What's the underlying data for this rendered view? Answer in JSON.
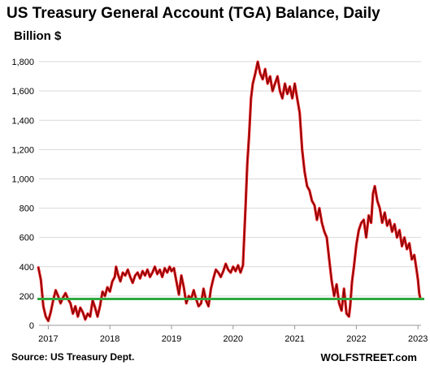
{
  "chart_data": {
    "type": "line",
    "title": "US Treasury General Account (TGA) Balance, Daily",
    "subtitle": "Billion $",
    "xlabel": "",
    "ylabel": "",
    "x_ticks": [
      "2017",
      "2018",
      "2019",
      "2020",
      "2021",
      "2022",
      "2023"
    ],
    "y_ticks": [
      "0",
      "200",
      "400",
      "600",
      "800",
      "1,000",
      "1,200",
      "1,400",
      "1,600",
      "1,800"
    ],
    "xlim": [
      2016.85,
      2023.05
    ],
    "ylim": [
      0,
      1900
    ],
    "grid": "horizontal",
    "legend": "none",
    "series": [
      {
        "color": "#e41a1c",
        "points": [
          [
            2016.84,
            395
          ],
          [
            2016.88,
            310
          ],
          [
            2016.92,
            130
          ],
          [
            2016.96,
            60
          ],
          [
            2017.0,
            30
          ],
          [
            2017.04,
            90
          ],
          [
            2017.08,
            170
          ],
          [
            2017.12,
            240
          ],
          [
            2017.16,
            200
          ],
          [
            2017.2,
            150
          ],
          [
            2017.24,
            190
          ],
          [
            2017.28,
            220
          ],
          [
            2017.32,
            180
          ],
          [
            2017.36,
            150
          ],
          [
            2017.4,
            80
          ],
          [
            2017.44,
            130
          ],
          [
            2017.48,
            60
          ],
          [
            2017.52,
            120
          ],
          [
            2017.56,
            90
          ],
          [
            2017.6,
            40
          ],
          [
            2017.64,
            80
          ],
          [
            2017.68,
            60
          ],
          [
            2017.72,
            170
          ],
          [
            2017.76,
            120
          ],
          [
            2017.8,
            60
          ],
          [
            2017.84,
            130
          ],
          [
            2017.88,
            230
          ],
          [
            2017.92,
            200
          ],
          [
            2017.96,
            260
          ],
          [
            2018.0,
            230
          ],
          [
            2018.04,
            300
          ],
          [
            2018.08,
            330
          ],
          [
            2018.1,
            400
          ],
          [
            2018.13,
            350
          ],
          [
            2018.17,
            300
          ],
          [
            2018.21,
            360
          ],
          [
            2018.25,
            340
          ],
          [
            2018.29,
            380
          ],
          [
            2018.33,
            330
          ],
          [
            2018.37,
            290
          ],
          [
            2018.41,
            340
          ],
          [
            2018.45,
            360
          ],
          [
            2018.49,
            320
          ],
          [
            2018.53,
            370
          ],
          [
            2018.57,
            340
          ],
          [
            2018.61,
            380
          ],
          [
            2018.65,
            330
          ],
          [
            2018.69,
            360
          ],
          [
            2018.73,
            400
          ],
          [
            2018.77,
            350
          ],
          [
            2018.81,
            380
          ],
          [
            2018.85,
            330
          ],
          [
            2018.89,
            390
          ],
          [
            2018.93,
            360
          ],
          [
            2018.97,
            400
          ],
          [
            2019.0,
            370
          ],
          [
            2019.04,
            390
          ],
          [
            2019.08,
            300
          ],
          [
            2019.12,
            210
          ],
          [
            2019.16,
            340
          ],
          [
            2019.2,
            260
          ],
          [
            2019.24,
            150
          ],
          [
            2019.28,
            200
          ],
          [
            2019.32,
            180
          ],
          [
            2019.36,
            240
          ],
          [
            2019.4,
            180
          ],
          [
            2019.44,
            130
          ],
          [
            2019.48,
            150
          ],
          [
            2019.52,
            250
          ],
          [
            2019.56,
            170
          ],
          [
            2019.6,
            130
          ],
          [
            2019.64,
            250
          ],
          [
            2019.68,
            320
          ],
          [
            2019.72,
            380
          ],
          [
            2019.76,
            360
          ],
          [
            2019.8,
            330
          ],
          [
            2019.84,
            370
          ],
          [
            2019.88,
            420
          ],
          [
            2019.92,
            380
          ],
          [
            2019.96,
            360
          ],
          [
            2020.0,
            400
          ],
          [
            2020.04,
            370
          ],
          [
            2020.08,
            410
          ],
          [
            2020.12,
            360
          ],
          [
            2020.16,
            410
          ],
          [
            2020.2,
            800
          ],
          [
            2020.23,
            1100
          ],
          [
            2020.26,
            1300
          ],
          [
            2020.29,
            1550
          ],
          [
            2020.32,
            1650
          ],
          [
            2020.36,
            1720
          ],
          [
            2020.4,
            1800
          ],
          [
            2020.44,
            1720
          ],
          [
            2020.48,
            1680
          ],
          [
            2020.52,
            1750
          ],
          [
            2020.56,
            1650
          ],
          [
            2020.6,
            1700
          ],
          [
            2020.64,
            1600
          ],
          [
            2020.68,
            1650
          ],
          [
            2020.72,
            1700
          ],
          [
            2020.76,
            1600
          ],
          [
            2020.8,
            1550
          ],
          [
            2020.84,
            1650
          ],
          [
            2020.88,
            1580
          ],
          [
            2020.92,
            1630
          ],
          [
            2020.96,
            1550
          ],
          [
            2021.0,
            1650
          ],
          [
            2021.04,
            1550
          ],
          [
            2021.08,
            1450
          ],
          [
            2021.12,
            1200
          ],
          [
            2021.16,
            1050
          ],
          [
            2021.2,
            950
          ],
          [
            2021.24,
            920
          ],
          [
            2021.28,
            850
          ],
          [
            2021.32,
            820
          ],
          [
            2021.36,
            720
          ],
          [
            2021.4,
            800
          ],
          [
            2021.44,
            700
          ],
          [
            2021.48,
            640
          ],
          [
            2021.52,
            600
          ],
          [
            2021.56,
            450
          ],
          [
            2021.6,
            300
          ],
          [
            2021.64,
            200
          ],
          [
            2021.68,
            280
          ],
          [
            2021.72,
            150
          ],
          [
            2021.76,
            100
          ],
          [
            2021.8,
            250
          ],
          [
            2021.84,
            80
          ],
          [
            2021.88,
            60
          ],
          [
            2021.9,
            130
          ],
          [
            2021.93,
            300
          ],
          [
            2021.96,
            400
          ],
          [
            2022.0,
            550
          ],
          [
            2022.04,
            650
          ],
          [
            2022.08,
            700
          ],
          [
            2022.12,
            720
          ],
          [
            2022.16,
            600
          ],
          [
            2022.2,
            750
          ],
          [
            2022.24,
            700
          ],
          [
            2022.27,
            900
          ],
          [
            2022.3,
            950
          ],
          [
            2022.34,
            850
          ],
          [
            2022.38,
            800
          ],
          [
            2022.42,
            700
          ],
          [
            2022.46,
            770
          ],
          [
            2022.5,
            680
          ],
          [
            2022.54,
            720
          ],
          [
            2022.58,
            640
          ],
          [
            2022.62,
            690
          ],
          [
            2022.66,
            600
          ],
          [
            2022.7,
            650
          ],
          [
            2022.74,
            540
          ],
          [
            2022.78,
            600
          ],
          [
            2022.82,
            520
          ],
          [
            2022.86,
            560
          ],
          [
            2022.9,
            450
          ],
          [
            2022.94,
            480
          ],
          [
            2022.98,
            370
          ],
          [
            2023.0,
            310
          ],
          [
            2023.02,
            220
          ],
          [
            2023.04,
            180
          ]
        ]
      }
    ],
    "reference_line": {
      "y": 180,
      "color": "#2eaa3f"
    },
    "annotations": [
      {
        "text": "Source: US Treasury Dept.",
        "location": "bottom-left"
      },
      {
        "text": "WOLFSTREET.com",
        "location": "bottom-right"
      }
    ]
  }
}
